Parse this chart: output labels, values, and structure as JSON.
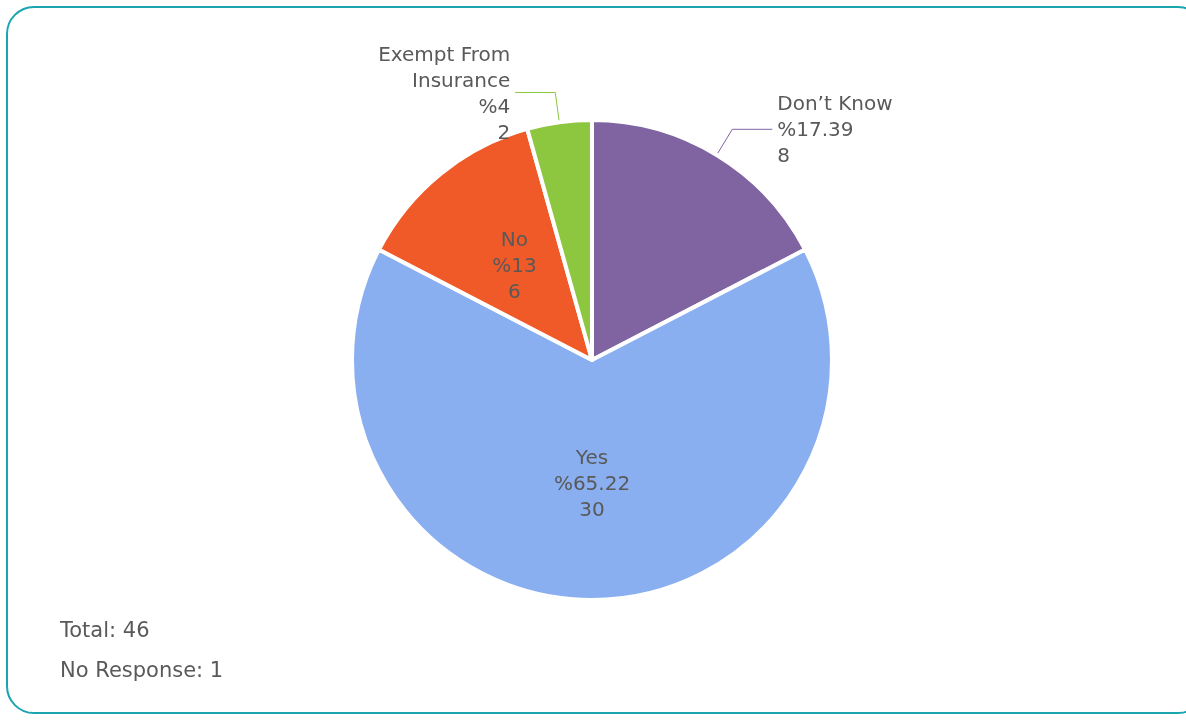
{
  "chart_data": {
    "type": "pie",
    "categories": [
      "Don’t Know",
      "Yes",
      "No",
      "Exempt From\nInsurance"
    ],
    "values": [
      8,
      30,
      6,
      2
    ],
    "colors": [
      "#8064a2",
      "#8aaff0",
      "#f05a28",
      "#8dc63f"
    ],
    "value_labels": [
      "%17.39\n8",
      "%65.22\n30",
      "%13\n6",
      "%4\n2"
    ],
    "legend": false,
    "annotations": [
      "Total: 46",
      "No Response: 1"
    ]
  }
}
